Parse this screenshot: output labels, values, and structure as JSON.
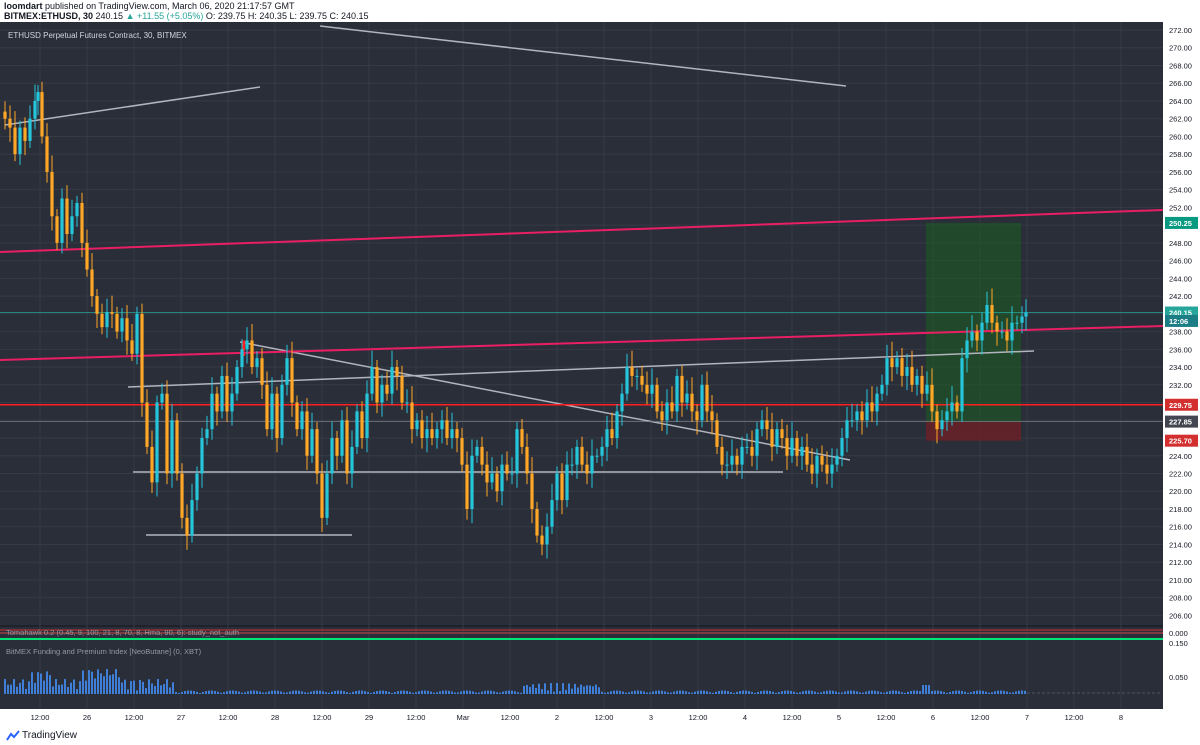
{
  "header": {
    "publisher": "loomdart",
    "published_text": "published on TradingView.com, March 06, 2020 21:17:57 GMT",
    "symbol": "BITMEX:ETHUSD, 30",
    "last": "240.15",
    "change": "▲ +11.55 (+5.05%)",
    "ohlc": "O: 239.75 H: 240.35 L: 239.75 C: 240.15"
  },
  "chart_title": "ETHUSD Perpetual Futures Contract, 30, BITMEX",
  "footer": {
    "brand": "TradingView"
  },
  "colors": {
    "background": "#2a2e39",
    "grid": "#363a45",
    "bull": "#26c6da",
    "bear": "#ffa726",
    "magenta_line": "#e91e63",
    "red_line": "#ff1f1f",
    "trend_line": "#b2b5be",
    "target_zone": "#1b5e20",
    "stop_zone": "#6d1f24",
    "volume": "#3f7fd8"
  },
  "chart_data": {
    "type": "candlestick",
    "title": "ETHUSD Perpetual Futures Contract, 30, BITMEX",
    "ylim": [
      204,
      272
    ],
    "y_ticks": [
      "272.00",
      "270.00",
      "268.00",
      "266.00",
      "264.00",
      "262.00",
      "260.00",
      "258.00",
      "256.00",
      "254.00",
      "252.00",
      "250.00",
      "248.00",
      "246.00",
      "244.00",
      "242.00",
      "240.00",
      "238.00",
      "236.00",
      "234.00",
      "232.00",
      "230.00",
      "228.00",
      "226.00",
      "224.00",
      "222.00",
      "220.00",
      "218.00",
      "216.00",
      "214.00",
      "212.00",
      "210.00",
      "208.00",
      "206.00"
    ],
    "x_ticks": [
      "12:00",
      "26",
      "12:00",
      "27",
      "12:00",
      "28",
      "12:00",
      "29",
      "12:00",
      "Mar",
      "12:00",
      "2",
      "12:00",
      "3",
      "12:00",
      "4",
      "12:00",
      "5",
      "12:00",
      "6",
      "12:00",
      "7",
      "12:00",
      "8"
    ],
    "price_tags": [
      {
        "label": "250.25",
        "value": 250.25,
        "color": "#089981"
      },
      {
        "label": "240.15",
        "value": 240.15,
        "color": "#26a69a"
      },
      {
        "label": "12:06",
        "value": 239.2,
        "color": "#1c7d85"
      },
      {
        "label": "229.75",
        "value": 229.75,
        "color": "#d32f2f"
      },
      {
        "label": "227.85",
        "value": 227.85,
        "color": "#434651"
      },
      {
        "label": "225.70",
        "value": 225.7,
        "color": "#d32f2f"
      }
    ],
    "price_path": [
      [
        0,
        262.8
      ],
      [
        5,
        262
      ],
      [
        10,
        261
      ],
      [
        15,
        258
      ],
      [
        20,
        261
      ],
      [
        25,
        259.5
      ],
      [
        30,
        262
      ],
      [
        35,
        264
      ],
      [
        38,
        265
      ],
      [
        42,
        260
      ],
      [
        47,
        256
      ],
      [
        52,
        251
      ],
      [
        57,
        248
      ],
      [
        62,
        253
      ],
      [
        67,
        249
      ],
      [
        72,
        251
      ],
      [
        77,
        252.5
      ],
      [
        82,
        248
      ],
      [
        87,
        245
      ],
      [
        92,
        242
      ],
      [
        97,
        240
      ],
      [
        102,
        238.5
      ],
      [
        107,
        240.2
      ],
      [
        112,
        240
      ],
      [
        117,
        238
      ],
      [
        122,
        239.5
      ],
      [
        127,
        237
      ],
      [
        132,
        235.5
      ],
      [
        137,
        240
      ],
      [
        142,
        230
      ],
      [
        147,
        225
      ],
      [
        152,
        221
      ],
      [
        157,
        230
      ],
      [
        162,
        231
      ],
      [
        167,
        222
      ],
      [
        172,
        228
      ],
      [
        177,
        222
      ],
      [
        182,
        217
      ],
      [
        187,
        215
      ],
      [
        192,
        219
      ],
      [
        197,
        222
      ],
      [
        202,
        226
      ],
      [
        207,
        227
      ],
      [
        212,
        231
      ],
      [
        217,
        229
      ],
      [
        222,
        233
      ],
      [
        227,
        229
      ],
      [
        232,
        231
      ],
      [
        237,
        234
      ],
      [
        242,
        236
      ],
      [
        247,
        237
      ],
      [
        252,
        234
      ],
      [
        257,
        235
      ],
      [
        262,
        232
      ],
      [
        267,
        227
      ],
      [
        272,
        231
      ],
      [
        277,
        226
      ],
      [
        282,
        232
      ],
      [
        287,
        235
      ],
      [
        292,
        230
      ],
      [
        297,
        227
      ],
      [
        302,
        229
      ],
      [
        307,
        224
      ],
      [
        312,
        227
      ],
      [
        317,
        222
      ],
      [
        322,
        217
      ],
      [
        327,
        222
      ],
      [
        332,
        226
      ],
      [
        337,
        224
      ],
      [
        342,
        228
      ],
      [
        347,
        222
      ],
      [
        352,
        225
      ],
      [
        357,
        229
      ],
      [
        362,
        226
      ],
      [
        367,
        231
      ],
      [
        372,
        234
      ],
      [
        377,
        230
      ],
      [
        382,
        232
      ],
      [
        387,
        231
      ],
      [
        392,
        234
      ],
      [
        397,
        233
      ],
      [
        402,
        230
      ],
      [
        407,
        230
      ],
      [
        412,
        227
      ],
      [
        417,
        228
      ],
      [
        422,
        226
      ],
      [
        427,
        227
      ],
      [
        432,
        226
      ],
      [
        437,
        227
      ],
      [
        442,
        228
      ],
      [
        447,
        226
      ],
      [
        452,
        227
      ],
      [
        457,
        226
      ],
      [
        462,
        223
      ],
      [
        467,
        218
      ],
      [
        472,
        224
      ],
      [
        477,
        225
      ],
      [
        482,
        223
      ],
      [
        487,
        221
      ],
      [
        492,
        222
      ],
      [
        497,
        220
      ],
      [
        502,
        223
      ],
      [
        507,
        222
      ],
      [
        512,
        222
      ],
      [
        517,
        227
      ],
      [
        522,
        225
      ],
      [
        527,
        222
      ],
      [
        532,
        218
      ],
      [
        537,
        215
      ],
      [
        542,
        214
      ],
      [
        547,
        216
      ],
      [
        552,
        219
      ],
      [
        557,
        222
      ],
      [
        562,
        219
      ],
      [
        567,
        223
      ],
      [
        572,
        223
      ],
      [
        577,
        225
      ],
      [
        582,
        223
      ],
      [
        587,
        222
      ],
      [
        592,
        224
      ],
      [
        597,
        224
      ],
      [
        602,
        225
      ],
      [
        607,
        227
      ],
      [
        612,
        226
      ],
      [
        617,
        229
      ],
      [
        622,
        231
      ],
      [
        627,
        234
      ],
      [
        632,
        233
      ],
      [
        637,
        233
      ],
      [
        642,
        232
      ],
      [
        647,
        231
      ],
      [
        652,
        232
      ],
      [
        657,
        229
      ],
      [
        662,
        228
      ],
      [
        667,
        230
      ],
      [
        672,
        229
      ],
      [
        677,
        233
      ],
      [
        682,
        230
      ],
      [
        687,
        231
      ],
      [
        692,
        229
      ],
      [
        697,
        228
      ],
      [
        702,
        232
      ],
      [
        707,
        229
      ],
      [
        712,
        228
      ],
      [
        717,
        225
      ],
      [
        722,
        223
      ],
      [
        727,
        223
      ],
      [
        732,
        224
      ],
      [
        737,
        223
      ],
      [
        742,
        225
      ],
      [
        747,
        225
      ],
      [
        752,
        224
      ],
      [
        757,
        227
      ],
      [
        762,
        228
      ],
      [
        767,
        227
      ],
      [
        772,
        225
      ],
      [
        777,
        227
      ],
      [
        782,
        226
      ],
      [
        787,
        224
      ],
      [
        792,
        226
      ],
      [
        797,
        224
      ],
      [
        802,
        225
      ],
      [
        807,
        223
      ],
      [
        812,
        222
      ],
      [
        817,
        224
      ],
      [
        822,
        223
      ],
      [
        827,
        222
      ],
      [
        832,
        223
      ],
      [
        837,
        224
      ],
      [
        842,
        226
      ],
      [
        847,
        228
      ],
      [
        852,
        228
      ],
      [
        857,
        229
      ],
      [
        862,
        228
      ],
      [
        867,
        230
      ],
      [
        872,
        229
      ],
      [
        877,
        231
      ],
      [
        882,
        232
      ],
      [
        887,
        235
      ],
      [
        892,
        234
      ],
      [
        897,
        235
      ],
      [
        902,
        233
      ],
      [
        907,
        234
      ],
      [
        912,
        232
      ],
      [
        917,
        233
      ],
      [
        922,
        231
      ],
      [
        927,
        232
      ],
      [
        932,
        229
      ],
      [
        937,
        227
      ],
      [
        942,
        228
      ],
      [
        947,
        229
      ],
      [
        952,
        230
      ],
      [
        957,
        229
      ],
      [
        962,
        235
      ],
      [
        967,
        237
      ],
      [
        972,
        238
      ],
      [
        977,
        237
      ],
      [
        982,
        239
      ],
      [
        987,
        241
      ],
      [
        992,
        239
      ],
      [
        997,
        238
      ],
      [
        1002,
        238
      ],
      [
        1007,
        237
      ],
      [
        1012,
        239
      ],
      [
        1017,
        239
      ],
      [
        1022,
        239.7
      ],
      [
        1026,
        240.15
      ]
    ],
    "horizontal_lines": [
      {
        "name": "red-level",
        "value": 229.75,
        "color": "#ff1f1f"
      },
      {
        "name": "last-price",
        "value": 240.15,
        "color": "#26a69a"
      },
      {
        "name": "entry-level",
        "value": 227.85,
        "color": "#787b86"
      }
    ],
    "position_zone": {
      "entry": 227.85,
      "target": 250.25,
      "stop": 225.7
    },
    "annotation_sign": "!"
  }
}
